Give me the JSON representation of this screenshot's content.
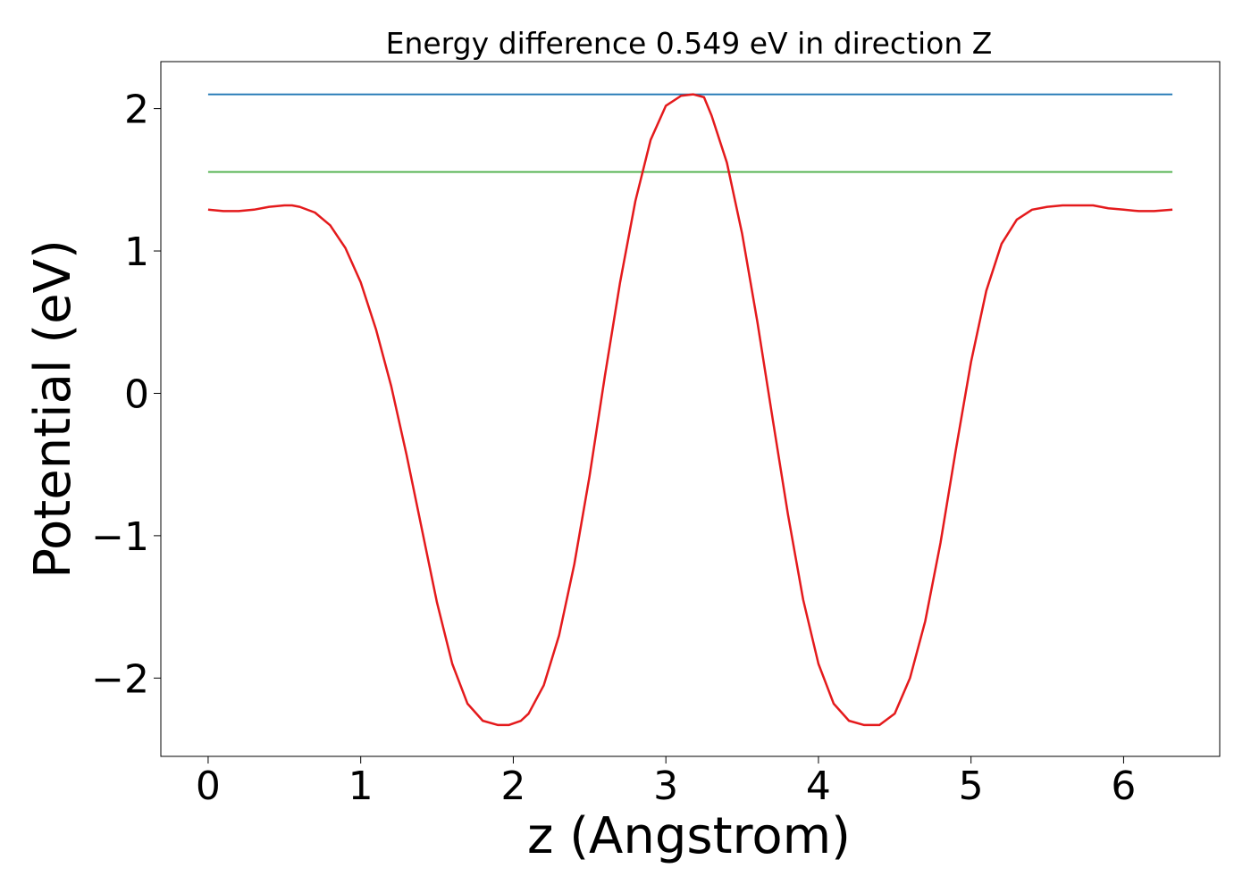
{
  "chart_data": {
    "type": "line",
    "title": "Energy difference 0.549 eV in direction Z",
    "xlabel": "z (Angstrom)",
    "ylabel": "Potential (eV)",
    "xlim": [
      -0.31,
      6.63
    ],
    "ylim": [
      -2.55,
      2.33
    ],
    "grid": false,
    "legend": "none",
    "xticks": [
      0,
      1,
      2,
      3,
      4,
      5,
      6
    ],
    "yticks": [
      -2,
      -1,
      0,
      1,
      2
    ],
    "xtick_labels": [
      "0",
      "1",
      "2",
      "3",
      "4",
      "5",
      "6"
    ],
    "ytick_labels": [
      "−2",
      "−1",
      "0",
      "1",
      "2"
    ],
    "series": [
      {
        "color": "#e41a1c",
        "x": [
          0,
          0.1,
          0.2,
          0.3,
          0.4,
          0.5,
          0.55,
          0.6,
          0.7,
          0.8,
          0.9,
          1.0,
          1.1,
          1.2,
          1.3,
          1.4,
          1.5,
          1.6,
          1.7,
          1.8,
          1.9,
          1.97,
          2.05,
          2.1,
          2.2,
          2.3,
          2.4,
          2.5,
          2.6,
          2.7,
          2.8,
          2.9,
          3.0,
          3.1,
          3.18,
          3.25,
          3.3,
          3.4,
          3.5,
          3.6,
          3.7,
          3.8,
          3.9,
          4.0,
          4.1,
          4.2,
          4.3,
          4.4,
          4.5,
          4.6,
          4.7,
          4.8,
          4.9,
          5.0,
          5.1,
          5.2,
          5.3,
          5.4,
          5.5,
          5.6,
          5.7,
          5.75,
          5.8,
          5.9,
          6.0,
          6.1,
          6.2,
          6.32
        ],
        "y": [
          1.29,
          1.28,
          1.28,
          1.29,
          1.31,
          1.32,
          1.32,
          1.31,
          1.27,
          1.18,
          1.02,
          0.78,
          0.45,
          0.05,
          -0.43,
          -0.95,
          -1.47,
          -1.9,
          -2.18,
          -2.3,
          -2.33,
          -2.33,
          -2.3,
          -2.25,
          -2.05,
          -1.7,
          -1.2,
          -0.58,
          0.12,
          0.78,
          1.35,
          1.78,
          2.02,
          2.09,
          2.1,
          2.08,
          1.95,
          1.62,
          1.12,
          0.5,
          -0.18,
          -0.85,
          -1.45,
          -1.9,
          -2.18,
          -2.3,
          -2.33,
          -2.33,
          -2.25,
          -2.0,
          -1.6,
          -1.05,
          -0.4,
          0.22,
          0.72,
          1.05,
          1.22,
          1.29,
          1.31,
          1.32,
          1.32,
          1.32,
          1.32,
          1.3,
          1.29,
          1.28,
          1.28,
          1.29
        ]
      },
      {
        "color": "#1f77b4",
        "x": [
          0,
          6.32
        ],
        "y": [
          2.1,
          2.1
        ]
      },
      {
        "color": "#4daf4a",
        "x": [
          0,
          6.32
        ],
        "y": [
          1.555,
          1.555
        ]
      }
    ]
  }
}
